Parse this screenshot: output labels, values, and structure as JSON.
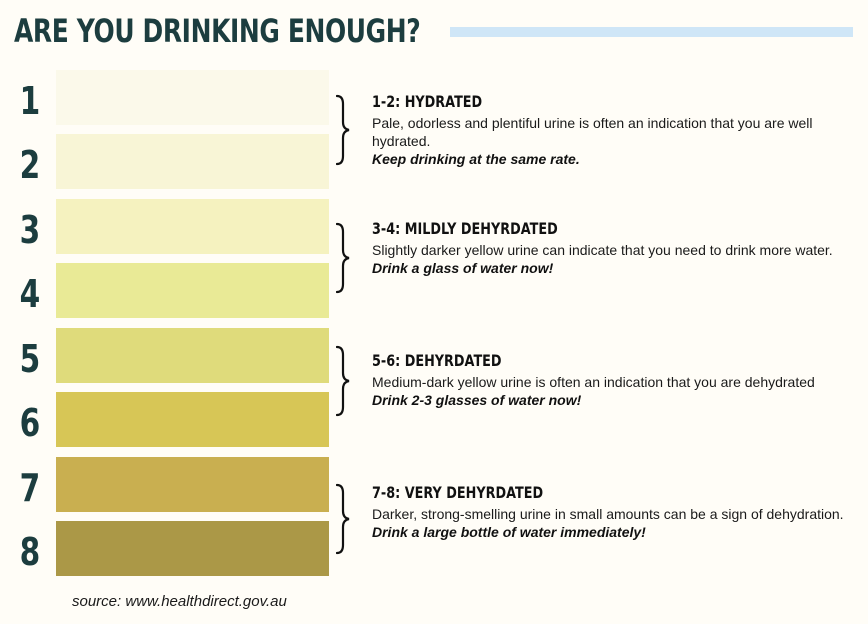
{
  "title": "ARE YOU DRINKING ENOUGH?",
  "colors": {
    "title": "#1c3d3f",
    "accent_bar": "#cfe6f7",
    "background": "#fffdf7"
  },
  "scale": [
    {
      "number": "1",
      "color": "#fbf9ea"
    },
    {
      "number": "2",
      "color": "#f8f5d6"
    },
    {
      "number": "3",
      "color": "#f5f2bf"
    },
    {
      "number": "4",
      "color": "#e9ea96"
    },
    {
      "number": "5",
      "color": "#dfdb7b"
    },
    {
      "number": "6",
      "color": "#d7c656"
    },
    {
      "number": "7",
      "color": "#c9af50"
    },
    {
      "number": "8",
      "color": "#ab9847"
    }
  ],
  "groups": [
    {
      "title": "1-2: HYDRATED",
      "description": "Pale, odorless and plentiful urine is often an indication that you are well hydrated.",
      "action": "Keep drinking at the same rate."
    },
    {
      "title": "3-4: MILDLY DEHYRDATED",
      "description": "Slightly darker yellow urine can indicate that you need to drink more water.",
      "action": "Drink a glass of water now!"
    },
    {
      "title": "5-6: DEHYRDATED",
      "description": "Medium-dark yellow urine is often an indication that you are dehydrated",
      "action": "Drink 2-3 glasses of water now!"
    },
    {
      "title": "7-8: VERY DEHYRDATED",
      "description": "Darker, strong-smelling urine in small amounts can be a sign of dehydration.",
      "action": "Drink a large bottle of water immediately!"
    }
  ],
  "source": "source: www.healthdirect.gov.au"
}
